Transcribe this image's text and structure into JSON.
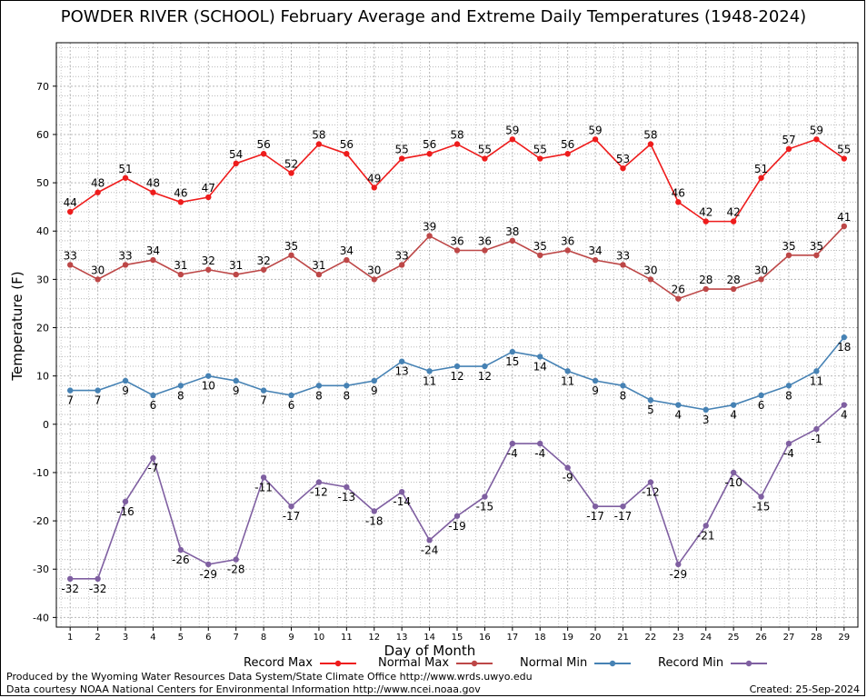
{
  "title": "POWDER RIVER (SCHOOL) February Average and Extreme Daily Temperatures (1948-2024)",
  "footer": {
    "produced_by": "Produced by the Wyoming Water Resources Data System/State Climate Office http://www.wrds.uwyo.edu",
    "data_courtesy": "Data courtesy NOAA National Centers for Environmental Information http://www.ncei.noaa.gov",
    "created": "Created:  25-Sep-2024"
  },
  "chart_data": {
    "type": "line",
    "xlabel": "Day of Month",
    "ylabel": "Temperature (F)",
    "x": [
      1,
      2,
      3,
      4,
      5,
      6,
      7,
      8,
      9,
      10,
      11,
      12,
      13,
      14,
      15,
      16,
      17,
      18,
      19,
      20,
      21,
      22,
      23,
      24,
      25,
      26,
      27,
      28,
      29
    ],
    "xlim": [
      0.5,
      29.5
    ],
    "ylim": [
      -42,
      79
    ],
    "yticks": [
      -40,
      -30,
      -20,
      -10,
      0,
      10,
      20,
      30,
      40,
      50,
      60,
      70
    ],
    "grid": true,
    "legend_position": "bottom",
    "series": [
      {
        "name": "Record Max",
        "color": "#ee1c1c",
        "values": [
          44,
          48,
          51,
          48,
          46,
          47,
          54,
          56,
          52,
          58,
          56,
          49,
          55,
          56,
          58,
          55,
          59,
          55,
          56,
          59,
          53,
          58,
          46,
          42,
          42,
          51,
          57,
          59,
          55
        ]
      },
      {
        "name": "Normal Max",
        "color": "#bd4747",
        "values": [
          33,
          30,
          33,
          34,
          31,
          32,
          31,
          32,
          35,
          31,
          34,
          30,
          33,
          39,
          36,
          36,
          38,
          35,
          36,
          34,
          33,
          30,
          26,
          28,
          28,
          30,
          35,
          35,
          41
        ]
      },
      {
        "name": "Normal Min",
        "color": "#4682b4",
        "values": [
          7,
          7,
          9,
          6,
          8,
          10,
          9,
          7,
          6,
          8,
          8,
          9,
          13,
          11,
          12,
          12,
          15,
          14,
          11,
          9,
          8,
          5,
          4,
          3,
          4,
          6,
          8,
          11,
          18
        ]
      },
      {
        "name": "Record Min",
        "color": "#7f5fa1",
        "values": [
          -32,
          -32,
          -16,
          -7,
          -26,
          -29,
          -28,
          -11,
          -17,
          -12,
          -13,
          -18,
          -14,
          -24,
          -19,
          -15,
          -4,
          -4,
          -9,
          -17,
          -17,
          -12,
          -29,
          -21,
          -10,
          -15,
          -4,
          -1,
          4
        ]
      }
    ]
  }
}
